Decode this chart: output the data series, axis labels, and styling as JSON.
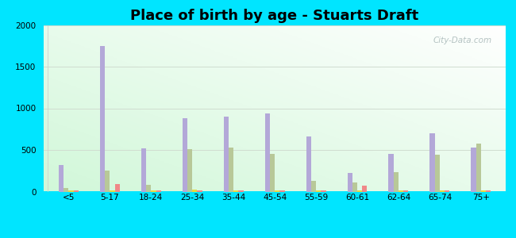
{
  "title": "Place of birth by age - Stuarts Draft",
  "categories": [
    "<5",
    "5-17",
    "18-24",
    "25-34",
    "35-44",
    "45-54",
    "55-59",
    "60-61",
    "62-64",
    "65-74",
    "75+"
  ],
  "series": {
    "Born in state of residence": [
      320,
      1750,
      520,
      880,
      900,
      940,
      660,
      220,
      450,
      700,
      530
    ],
    "Born in other state": [
      40,
      250,
      80,
      510,
      530,
      450,
      130,
      110,
      230,
      440,
      580
    ],
    "Native, outside of US": [
      10,
      15,
      10,
      20,
      15,
      15,
      10,
      10,
      10,
      15,
      15
    ],
    "Foreign-born": [
      15,
      90,
      15,
      15,
      15,
      10,
      10,
      70,
      10,
      10,
      15
    ]
  },
  "colors": {
    "Born in state of residence": "#b3a8d8",
    "Born in other state": "#b8c898",
    "Native, outside of US": "#e8d840",
    "Foreign-born": "#f08888"
  },
  "ylim": [
    0,
    2000
  ],
  "yticks": [
    0,
    500,
    1000,
    1500,
    2000
  ],
  "outer_background": "#00e5ff",
  "grid_color": "#e0e8e0",
  "title_fontsize": 13
}
